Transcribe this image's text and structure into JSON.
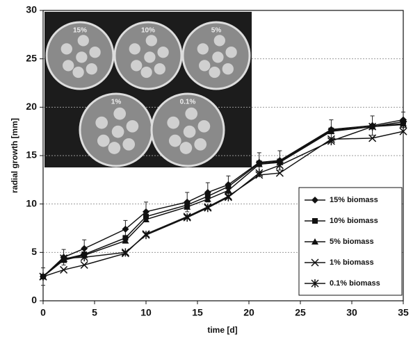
{
  "chart_data": {
    "type": "line",
    "x_label": "time [d]",
    "y_label": "radial growth [mm]",
    "x": [
      0,
      2,
      4,
      8,
      10,
      14,
      16,
      18,
      21,
      23,
      28,
      32,
      35
    ],
    "series": [
      {
        "name": "15% biomass",
        "color": "#111111",
        "marker": "diamond",
        "values": [
          2.5,
          4.5,
          5.4,
          7.4,
          9.2,
          10.2,
          11.2,
          12.0,
          14.3,
          14.5,
          17.7,
          18.1,
          18.7
        ],
        "errors": [
          0.9,
          0.8,
          0.9,
          0.9,
          1.0,
          1.0,
          1.0,
          0.9,
          1.0,
          1.0,
          1.0,
          1.0,
          0.8
        ]
      },
      {
        "name": "10% biomass",
        "color": "#111111",
        "marker": "square",
        "values": [
          2.5,
          4.3,
          4.8,
          6.5,
          8.7,
          9.9,
          10.8,
          11.8,
          14.2,
          14.4,
          17.6,
          18.0,
          18.5
        ]
      },
      {
        "name": "5% biomass",
        "color": "#111111",
        "marker": "triangle",
        "values": [
          2.5,
          4.2,
          4.7,
          6.2,
          8.4,
          9.7,
          10.5,
          11.4,
          14.1,
          14.3,
          17.5,
          18.0,
          18.3
        ]
      },
      {
        "name": "1% biomass",
        "color": "#111111",
        "marker": "x",
        "values": [
          2.5,
          3.2,
          3.7,
          4.9,
          6.9,
          8.7,
          9.7,
          10.8,
          13.0,
          13.2,
          16.7,
          16.8,
          17.5
        ]
      },
      {
        "name": "0.1% biomass",
        "color": "#111111",
        "marker": "asterisk",
        "values": [
          2.5,
          4.4,
          4.5,
          5.0,
          6.8,
          8.6,
          9.6,
          10.7,
          13.2,
          14.0,
          16.5,
          18.0,
          18.2
        ]
      }
    ],
    "xlim": [
      0,
      35
    ],
    "xticks": [
      0,
      5,
      10,
      15,
      20,
      25,
      30,
      35
    ],
    "ylim": [
      0,
      30
    ],
    "yticks": [
      0,
      5,
      10,
      15,
      20,
      25,
      30
    ],
    "grid": true,
    "legend_position": "lower-right",
    "inset_labels": [
      "15%",
      "10%",
      "5%",
      "1%",
      "0.1%"
    ]
  }
}
